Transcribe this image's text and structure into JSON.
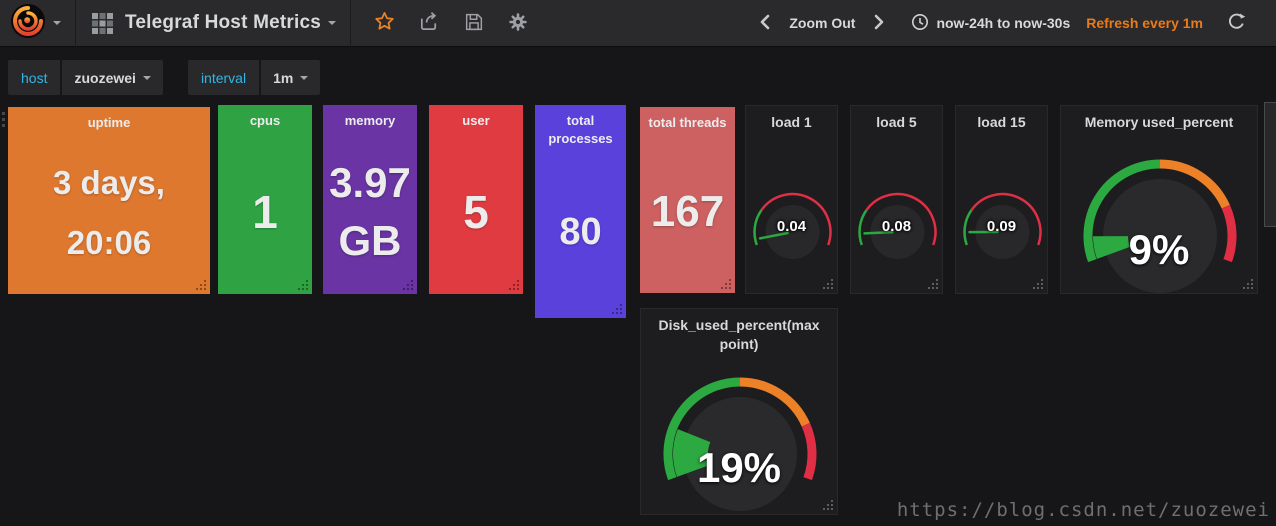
{
  "navbar": {
    "dashboard_title": "Telegraf Host Metrics",
    "zoom_out_label": "Zoom Out",
    "time_range_label": "now-24h to now-30s",
    "refresh_label": "Refresh every 1m"
  },
  "variables": [
    {
      "label": "host",
      "value": "zuozewei"
    },
    {
      "label": "interval",
      "value": "1m"
    }
  ],
  "colors": {
    "accent_orange": "#EB7B18",
    "gauge_green": "#2CA940",
    "gauge_orange": "#ED8128",
    "gauge_red": "#E02F44"
  },
  "watermark": "https://blog.csdn.net/zuozewei",
  "panels": [
    {
      "type": "singlestat",
      "title": "uptime",
      "v1": "3 days,",
      "v2": "20:06",
      "bg": "#DF782F"
    },
    {
      "type": "singlestat",
      "title": "cpus",
      "v1": "1",
      "bg": "#2FA344"
    },
    {
      "type": "singlestat",
      "title": "memory",
      "v1": "3.97",
      "v2": "GB",
      "bg": "#6A34A4"
    },
    {
      "type": "singlestat",
      "title": "user",
      "v1": "5",
      "bg": "#E13B42"
    },
    {
      "type": "singlestat",
      "title": "total processes",
      "v1": "80",
      "bg": "#5B41DC"
    },
    {
      "type": "singlestat",
      "title": "total threads",
      "v1": "167",
      "bg": "#CD6060"
    },
    {
      "type": "gauge",
      "variant": "needle",
      "title": "load 1",
      "display": "0.04",
      "value": 0.04,
      "min": 0,
      "max": 1,
      "thresholds": [
        {
          "to": 0.25,
          "color": "#2CA940"
        },
        {
          "to": 1,
          "color": "#E02F44"
        }
      ]
    },
    {
      "type": "gauge",
      "variant": "needle",
      "title": "load 5",
      "display": "0.08",
      "value": 0.08,
      "min": 0,
      "max": 1,
      "thresholds": [
        {
          "to": 0.25,
          "color": "#2CA940"
        },
        {
          "to": 1,
          "color": "#E02F44"
        }
      ]
    },
    {
      "type": "gauge",
      "variant": "needle",
      "title": "load 15",
      "display": "0.09",
      "value": 0.09,
      "min": 0,
      "max": 1,
      "thresholds": [
        {
          "to": 0.25,
          "color": "#2CA940"
        },
        {
          "to": 1,
          "color": "#E02F44"
        }
      ]
    },
    {
      "type": "gauge",
      "variant": "arc",
      "title": "Memory used_percent",
      "display": "9%",
      "value": 9,
      "min": 0,
      "max": 100,
      "thresholds": [
        {
          "to": 50,
          "color": "#2CA940"
        },
        {
          "to": 80,
          "color": "#ED8128"
        },
        {
          "to": 100,
          "color": "#E02F44"
        }
      ]
    },
    {
      "type": "gauge",
      "variant": "arc",
      "title": "Disk_used_percent(max point)",
      "display": "19%",
      "value": 19,
      "min": 0,
      "max": 100,
      "thresholds": [
        {
          "to": 50,
          "color": "#2CA940"
        },
        {
          "to": 80,
          "color": "#ED8128"
        },
        {
          "to": 100,
          "color": "#E02F44"
        }
      ]
    }
  ]
}
